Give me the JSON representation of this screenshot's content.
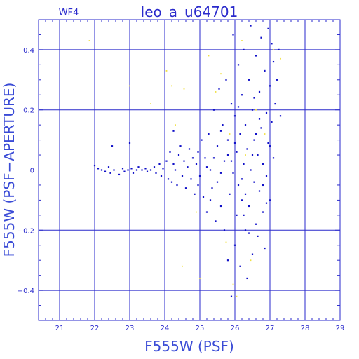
{
  "chart_data": {
    "type": "scatter",
    "title": "leo_a_u64701",
    "subtitle": "WF4",
    "xlabel": "F555W (PSF)",
    "ylabel": "F555W (PSF−APERTURE)",
    "xlim": [
      20.4,
      29.0
    ],
    "ylim": [
      -0.5,
      0.5
    ],
    "x_ticks": [
      "21",
      "22",
      "23",
      "24",
      "25",
      "26",
      "27",
      "28",
      "29"
    ],
    "y_ticks": [
      "−0.4",
      "−0.2",
      "0",
      "0.2",
      "0.4"
    ],
    "grid": true,
    "colors": {
      "axes": "#2a2acc",
      "grid": "#2a2acc",
      "series_blue": "#1010c8",
      "series_yellow": "#f0e040",
      "text": "#2a2acc"
    },
    "series": [
      {
        "color_name": "blue",
        "points": [
          [
            22.0,
            0.015
          ],
          [
            22.1,
            0.005
          ],
          [
            22.2,
            0.0
          ],
          [
            22.3,
            -0.005
          ],
          [
            22.4,
            0.01
          ],
          [
            22.45,
            -0.01
          ],
          [
            22.55,
            0.0
          ],
          [
            22.5,
            0.08
          ],
          [
            22.7,
            -0.015
          ],
          [
            22.8,
            0.005
          ],
          [
            22.85,
            -0.005
          ],
          [
            22.95,
            0.0
          ],
          [
            23.05,
            0.005
          ],
          [
            23.1,
            -0.01
          ],
          [
            23.2,
            0.0
          ],
          [
            23.25,
            0.01
          ],
          [
            23.0,
            0.09
          ],
          [
            23.35,
            0.0
          ],
          [
            23.45,
            0.005
          ],
          [
            23.5,
            -0.005
          ],
          [
            23.6,
            0.0
          ],
          [
            23.7,
            0.01
          ],
          [
            23.75,
            -0.01
          ],
          [
            23.85,
            0.02
          ],
          [
            23.9,
            -0.02
          ],
          [
            23.95,
            0.005
          ],
          [
            24.05,
            0.03
          ],
          [
            24.1,
            -0.03
          ],
          [
            24.15,
            0.06
          ],
          [
            24.2,
            -0.04
          ],
          [
            24.25,
            0.02
          ],
          [
            24.3,
            0.0
          ],
          [
            24.35,
            -0.05
          ],
          [
            24.4,
            0.05
          ],
          [
            24.45,
            0.08
          ],
          [
            24.5,
            -0.02
          ],
          [
            24.55,
            0.03
          ],
          [
            24.6,
            -0.06
          ],
          [
            24.65,
            0.01
          ],
          [
            24.7,
            0.07
          ],
          [
            24.75,
            -0.03
          ],
          [
            24.8,
            0.04
          ],
          [
            24.85,
            -0.08
          ],
          [
            24.9,
            0.02
          ],
          [
            24.95,
            0.06
          ],
          [
            24.95,
            -0.05
          ],
          [
            24.25,
            0.13
          ],
          [
            25.0,
            -0.02
          ],
          [
            25.05,
            0.1
          ],
          [
            25.1,
            -0.09
          ],
          [
            25.15,
            0.04
          ],
          [
            25.2,
            -0.14
          ],
          [
            25.25,
            0.12
          ],
          [
            25.3,
            0.0
          ],
          [
            25.35,
            -0.06
          ],
          [
            25.4,
            0.2
          ],
          [
            25.45,
            -0.17
          ],
          [
            25.5,
            0.08
          ],
          [
            25.5,
            -0.04
          ],
          [
            25.55,
            0.27
          ],
          [
            25.6,
            -0.12
          ],
          [
            25.65,
            0.15
          ],
          [
            25.7,
            0.03
          ],
          [
            25.7,
            -0.2
          ],
          [
            25.75,
            0.3
          ],
          [
            25.8,
            0.1
          ],
          [
            25.8,
            -0.3
          ],
          [
            25.85,
            -0.08
          ],
          [
            25.9,
            0.22
          ],
          [
            25.9,
            -0.42
          ],
          [
            25.95,
            0.45
          ],
          [
            25.95,
            -0.01
          ],
          [
            26.0,
            0.18
          ],
          [
            26.0,
            -0.25
          ],
          [
            26.05,
            0.06
          ],
          [
            26.05,
            -0.15
          ],
          [
            26.1,
            0.35
          ],
          [
            26.1,
            -0.05
          ],
          [
            26.15,
            0.12
          ],
          [
            26.15,
            -0.32
          ],
          [
            26.2,
            0.25
          ],
          [
            26.2,
            -0.1
          ],
          [
            26.25,
            0.02
          ],
          [
            26.25,
            0.4
          ],
          [
            26.3,
            -0.2
          ],
          [
            26.3,
            0.15
          ],
          [
            26.35,
            -0.36
          ],
          [
            26.35,
            0.07
          ],
          [
            26.4,
            0.3
          ],
          [
            26.4,
            -0.12
          ],
          [
            26.45,
            0.0
          ],
          [
            26.45,
            0.48
          ],
          [
            26.5,
            -0.28
          ],
          [
            26.5,
            0.2
          ],
          [
            26.55,
            -0.04
          ],
          [
            26.55,
            0.1
          ],
          [
            26.6,
            0.38
          ],
          [
            26.6,
            -0.18
          ],
          [
            26.65,
            0.05
          ],
          [
            26.65,
            -0.22
          ],
          [
            26.7,
            0.26
          ],
          [
            26.7,
            -0.07
          ],
          [
            26.75,
            0.44
          ],
          [
            26.75,
            0.14
          ],
          [
            26.8,
            -0.14
          ],
          [
            26.8,
            0.02
          ],
          [
            26.85,
            0.33
          ],
          [
            26.85,
            -0.26
          ],
          [
            26.9,
            0.19
          ],
          [
            26.9,
            -0.02
          ],
          [
            26.95,
            0.09
          ],
          [
            26.95,
            0.47
          ],
          [
            27.0,
            0.28
          ],
          [
            27.0,
            -0.1
          ],
          [
            27.05,
            0.16
          ],
          [
            27.05,
            0.42
          ],
          [
            27.1,
            0.36
          ],
          [
            27.1,
            0.04
          ],
          [
            27.15,
            0.22
          ],
          [
            27.2,
            0.3
          ],
          [
            27.25,
            0.4
          ],
          [
            27.3,
            0.18
          ],
          [
            25.2,
            0.01
          ],
          [
            25.4,
            0.04
          ],
          [
            25.6,
            -0.01
          ],
          [
            25.9,
            0.03
          ],
          [
            26.2,
            -0.03
          ],
          [
            26.5,
            0.05
          ],
          [
            26.8,
            -0.05
          ],
          [
            26.0,
            0.09
          ],
          [
            26.3,
            -0.08
          ],
          [
            26.6,
            0.12
          ],
          [
            26.9,
            -0.11
          ],
          [
            25.8,
            0.05
          ],
          [
            26.1,
            0.21
          ],
          [
            26.4,
            -0.21
          ],
          [
            26.7,
            0.17
          ],
          [
            27.0,
            0.08
          ],
          [
            25.3,
            -0.1
          ],
          [
            25.6,
            0.13
          ],
          [
            26.25,
            -0.15
          ],
          [
            26.55,
            0.24
          ]
        ]
      },
      {
        "color_name": "yellow",
        "points": [
          [
            21.85,
            0.43
          ],
          [
            23.0,
            0.28
          ],
          [
            23.6,
            0.22
          ],
          [
            24.05,
            0.33
          ],
          [
            24.3,
            0.15
          ],
          [
            24.55,
            0.27
          ],
          [
            24.9,
            -0.14
          ],
          [
            24.5,
            -0.32
          ],
          [
            25.0,
            -0.36
          ],
          [
            25.25,
            0.38
          ],
          [
            25.6,
            0.32
          ],
          [
            25.75,
            -0.24
          ],
          [
            25.95,
            -0.38
          ],
          [
            26.2,
            0.43
          ],
          [
            26.45,
            -0.3
          ],
          [
            26.6,
            0.2
          ],
          [
            26.85,
            0.12
          ],
          [
            27.1,
            0.4
          ],
          [
            27.3,
            0.37
          ],
          [
            26.3,
            0.05
          ],
          [
            25.45,
            0.26
          ],
          [
            26.05,
            -0.42
          ],
          [
            24.2,
            0.28
          ],
          [
            25.85,
            0.12
          ]
        ]
      }
    ]
  }
}
